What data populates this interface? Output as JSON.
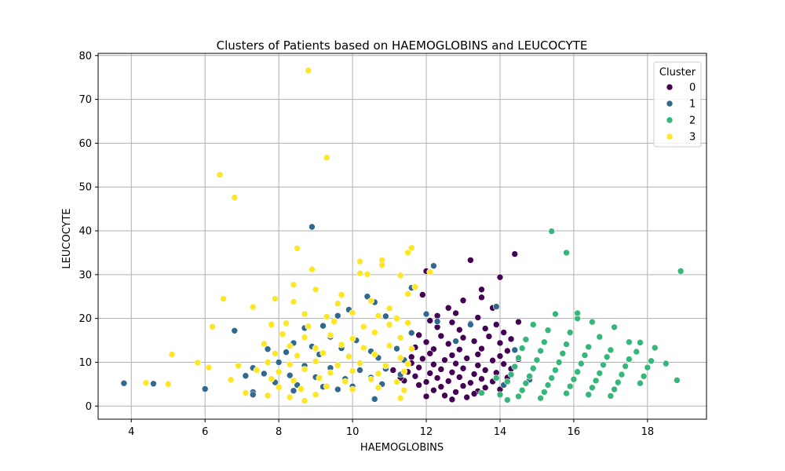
{
  "chart_data": {
    "type": "scatter",
    "title": "Clusters of Patients based on HAEMOGLOBINS and LEUCOCYTE",
    "xlabel": "HAEMOGLOBINS",
    "ylabel": "LEUCOCYTE",
    "xlim": [
      3.1,
      19.6
    ],
    "ylim": [
      -3.0,
      80.5
    ],
    "xticks": [
      4,
      6,
      8,
      10,
      12,
      14,
      16,
      18
    ],
    "yticks": [
      0,
      10,
      20,
      30,
      40,
      50,
      60,
      70,
      80
    ],
    "grid": true,
    "legend": {
      "title": "Cluster",
      "placement": "top-right"
    },
    "series": [
      {
        "name": "0",
        "color": "#440154",
        "points": [
          [
            13.2,
            33.3
          ],
          [
            14.4,
            34.7
          ],
          [
            14.0,
            29.4
          ],
          [
            12.0,
            30.8
          ],
          [
            11.9,
            25.4
          ],
          [
            13.0,
            24.1
          ],
          [
            13.5,
            24.8
          ],
          [
            13.5,
            26.6
          ],
          [
            12.6,
            22.4
          ],
          [
            13.8,
            22.4
          ],
          [
            12.3,
            20.6
          ],
          [
            12.8,
            21.2
          ],
          [
            13.4,
            20.2
          ],
          [
            12.1,
            19.5
          ],
          [
            12.7,
            19.1
          ],
          [
            13.2,
            18.8
          ],
          [
            13.9,
            18.6
          ],
          [
            14.5,
            19.2
          ],
          [
            12.3,
            18.0
          ],
          [
            12.9,
            17.4
          ],
          [
            13.6,
            17.7
          ],
          [
            14.1,
            16.8
          ],
          [
            11.8,
            16.2
          ],
          [
            12.4,
            16.0
          ],
          [
            13.0,
            15.6
          ],
          [
            13.7,
            15.9
          ],
          [
            14.3,
            15.3
          ],
          [
            12.0,
            14.6
          ],
          [
            12.6,
            14.2
          ],
          [
            13.3,
            14.8
          ],
          [
            14.0,
            14.4
          ],
          [
            11.7,
            13.4
          ],
          [
            12.2,
            13.0
          ],
          [
            12.9,
            12.9
          ],
          [
            13.5,
            13.1
          ],
          [
            14.2,
            12.6
          ],
          [
            12.1,
            12.0
          ],
          [
            12.7,
            11.6
          ],
          [
            13.4,
            11.8
          ],
          [
            14.0,
            11.4
          ],
          [
            11.9,
            10.8
          ],
          [
            12.5,
            10.5
          ],
          [
            13.1,
            10.9
          ],
          [
            13.8,
            10.4
          ],
          [
            14.5,
            10.7
          ],
          [
            11.6,
            9.8
          ],
          [
            12.2,
            9.5
          ],
          [
            12.8,
            9.7
          ],
          [
            13.4,
            9.3
          ],
          [
            14.1,
            9.6
          ],
          [
            11.8,
            8.8
          ],
          [
            12.4,
            8.4
          ],
          [
            13.0,
            8.6
          ],
          [
            13.6,
            8.2
          ],
          [
            14.3,
            8.5
          ],
          [
            11.5,
            7.8
          ],
          [
            12.1,
            7.5
          ],
          [
            12.7,
            7.7
          ],
          [
            13.3,
            7.3
          ],
          [
            13.9,
            7.6
          ],
          [
            11.7,
            6.8
          ],
          [
            12.3,
            6.4
          ],
          [
            12.9,
            6.6
          ],
          [
            13.5,
            6.2
          ],
          [
            14.2,
            6.5
          ],
          [
            11.4,
            5.8
          ],
          [
            12.0,
            5.5
          ],
          [
            12.6,
            5.7
          ],
          [
            13.2,
            5.3
          ],
          [
            13.8,
            5.6
          ],
          [
            11.8,
            4.8
          ],
          [
            12.4,
            4.4
          ],
          [
            13.0,
            4.6
          ],
          [
            13.6,
            4.2
          ],
          [
            12.2,
            3.6
          ],
          [
            12.8,
            3.2
          ],
          [
            13.4,
            3.4
          ],
          [
            14.0,
            3.8
          ],
          [
            12.5,
            2.4
          ],
          [
            13.1,
            2.0
          ],
          [
            12.0,
            2.2
          ],
          [
            12.7,
            1.5
          ],
          [
            13.3,
            2.8
          ],
          [
            11.6,
            11.2
          ],
          [
            11.3,
            6.4
          ],
          [
            11.1,
            8.2
          ]
        ]
      },
      {
        "name": "1",
        "color": "#31688e",
        "points": [
          [
            8.9,
            40.9
          ],
          [
            12.2,
            32.0
          ],
          [
            11.6,
            27.0
          ],
          [
            10.4,
            25.0
          ],
          [
            12.0,
            21.0
          ],
          [
            13.9,
            22.7
          ],
          [
            9.6,
            20.6
          ],
          [
            10.9,
            20.5
          ],
          [
            10.6,
            23.7
          ],
          [
            9.9,
            22.0
          ],
          [
            9.2,
            18.3
          ],
          [
            8.7,
            17.8
          ],
          [
            6.8,
            17.2
          ],
          [
            12.3,
            19.3
          ],
          [
            9.4,
            15.8
          ],
          [
            10.1,
            15.0
          ],
          [
            11.6,
            16.7
          ],
          [
            8.4,
            14.4
          ],
          [
            8.9,
            13.6
          ],
          [
            9.7,
            13.2
          ],
          [
            10.5,
            12.5
          ],
          [
            11.2,
            13.1
          ],
          [
            7.7,
            13.0
          ],
          [
            8.2,
            12.3
          ],
          [
            9.1,
            11.8
          ],
          [
            9.9,
            11.4
          ],
          [
            10.7,
            11.0
          ],
          [
            11.4,
            10.5
          ],
          [
            7.3,
            8.7
          ],
          [
            6.9,
            9.3
          ],
          [
            8.0,
            10.0
          ],
          [
            8.7,
            9.2
          ],
          [
            9.4,
            8.7
          ],
          [
            10.2,
            8.2
          ],
          [
            10.9,
            8.5
          ],
          [
            7.6,
            7.4
          ],
          [
            8.3,
            7.0
          ],
          [
            9.0,
            6.6
          ],
          [
            9.8,
            6.2
          ],
          [
            10.5,
            6.5
          ],
          [
            11.3,
            7.2
          ],
          [
            7.1,
            6.9
          ],
          [
            7.9,
            5.4
          ],
          [
            8.5,
            4.8
          ],
          [
            9.2,
            4.4
          ],
          [
            10.0,
            4.5
          ],
          [
            10.8,
            5.0
          ],
          [
            7.3,
            3.2
          ],
          [
            8.4,
            3.5
          ],
          [
            9.6,
            3.8
          ],
          [
            10.6,
            1.6
          ],
          [
            3.8,
            5.2
          ],
          [
            4.6,
            5.1
          ],
          [
            6.0,
            3.9
          ],
          [
            7.3,
            2.6
          ],
          [
            13.2,
            18.6
          ],
          [
            14.4,
            12.8
          ],
          [
            14.1,
            4.8
          ],
          [
            14.8,
            6.0
          ],
          [
            12.8,
            14.8
          ]
        ]
      },
      {
        "name": "2",
        "color": "#35b779",
        "points": [
          [
            15.4,
            39.9
          ],
          [
            15.8,
            35.0
          ],
          [
            18.9,
            30.8
          ],
          [
            14.9,
            18.6
          ],
          [
            15.5,
            21.0
          ],
          [
            16.1,
            20.0
          ],
          [
            16.5,
            19.2
          ],
          [
            17.1,
            18.0
          ],
          [
            15.3,
            17.3
          ],
          [
            15.9,
            16.8
          ],
          [
            16.7,
            15.8
          ],
          [
            17.5,
            14.6
          ],
          [
            18.2,
            13.3
          ],
          [
            14.7,
            15.2
          ],
          [
            15.2,
            14.6
          ],
          [
            15.8,
            14.1
          ],
          [
            16.4,
            13.5
          ],
          [
            17.0,
            12.8
          ],
          [
            17.7,
            12.4
          ],
          [
            14.6,
            13.2
          ],
          [
            15.1,
            12.6
          ],
          [
            15.7,
            12.0
          ],
          [
            16.3,
            11.6
          ],
          [
            16.9,
            11.2
          ],
          [
            17.5,
            10.7
          ],
          [
            18.1,
            10.3
          ],
          [
            14.5,
            11.0
          ],
          [
            15.0,
            10.5
          ],
          [
            15.6,
            10.0
          ],
          [
            16.2,
            9.7
          ],
          [
            16.8,
            9.4
          ],
          [
            17.4,
            9.1
          ],
          [
            18.0,
            8.8
          ],
          [
            18.5,
            9.7
          ],
          [
            14.4,
            9.0
          ],
          [
            14.9,
            8.6
          ],
          [
            15.5,
            8.2
          ],
          [
            16.1,
            7.8
          ],
          [
            16.7,
            7.5
          ],
          [
            17.3,
            7.2
          ],
          [
            17.9,
            6.8
          ],
          [
            14.3,
            7.2
          ],
          [
            14.8,
            6.8
          ],
          [
            15.4,
            6.4
          ],
          [
            16.0,
            6.1
          ],
          [
            16.6,
            5.8
          ],
          [
            17.2,
            5.4
          ],
          [
            17.8,
            5.2
          ],
          [
            14.2,
            5.6
          ],
          [
            14.7,
            5.2
          ],
          [
            15.3,
            4.8
          ],
          [
            15.9,
            4.5
          ],
          [
            16.5,
            4.2
          ],
          [
            17.1,
            3.8
          ],
          [
            14.6,
            3.6
          ],
          [
            15.2,
            3.2
          ],
          [
            15.8,
            2.9
          ],
          [
            16.4,
            2.6
          ],
          [
            17.0,
            2.3
          ],
          [
            14.5,
            2.2
          ],
          [
            15.1,
            1.8
          ],
          [
            14.0,
            2.6
          ],
          [
            13.5,
            3.0
          ],
          [
            13.9,
            6.4
          ],
          [
            14.2,
            1.4
          ],
          [
            18.8,
            5.9
          ],
          [
            17.8,
            14.5
          ],
          [
            16.1,
            21.2
          ]
        ]
      },
      {
        "name": "3",
        "color": "#fde725",
        "points": [
          [
            8.8,
            76.6
          ],
          [
            9.3,
            56.7
          ],
          [
            6.4,
            52.8
          ],
          [
            6.8,
            47.6
          ],
          [
            8.5,
            36.0
          ],
          [
            11.5,
            35.0
          ],
          [
            11.6,
            36.1
          ],
          [
            10.8,
            33.3
          ],
          [
            10.2,
            33.0
          ],
          [
            10.8,
            32.2
          ],
          [
            10.4,
            30.1
          ],
          [
            10.2,
            30.3
          ],
          [
            8.9,
            31.2
          ],
          [
            11.3,
            29.8
          ],
          [
            6.5,
            24.5
          ],
          [
            7.9,
            24.5
          ],
          [
            8.4,
            23.8
          ],
          [
            7.3,
            22.6
          ],
          [
            9.6,
            23.4
          ],
          [
            10.5,
            24.0
          ],
          [
            11.0,
            22.3
          ],
          [
            8.4,
            27.7
          ],
          [
            9.0,
            26.6
          ],
          [
            9.7,
            25.4
          ],
          [
            11.5,
            25.6
          ],
          [
            8.7,
            21.0
          ],
          [
            9.3,
            20.4
          ],
          [
            10.0,
            21.3
          ],
          [
            10.7,
            20.6
          ],
          [
            11.2,
            20.0
          ],
          [
            6.2,
            18.1
          ],
          [
            7.8,
            18.6
          ],
          [
            8.2,
            18.9
          ],
          [
            8.8,
            18.2
          ],
          [
            9.5,
            19.3
          ],
          [
            10.3,
            18.1
          ],
          [
            11.0,
            18.6
          ],
          [
            11.5,
            19.0
          ],
          [
            8.1,
            16.4
          ],
          [
            8.7,
            15.7
          ],
          [
            9.4,
            16.2
          ],
          [
            10.0,
            15.4
          ],
          [
            10.6,
            16.8
          ],
          [
            11.3,
            15.6
          ],
          [
            7.6,
            14.2
          ],
          [
            8.3,
            13.7
          ],
          [
            9.0,
            13.2
          ],
          [
            9.7,
            14.0
          ],
          [
            10.3,
            13.3
          ],
          [
            11.0,
            13.8
          ],
          [
            11.6,
            13.1
          ],
          [
            7.9,
            12.0
          ],
          [
            8.5,
            11.5
          ],
          [
            9.2,
            12.1
          ],
          [
            9.9,
            11.3
          ],
          [
            10.6,
            11.8
          ],
          [
            11.3,
            11.0
          ],
          [
            7.7,
            10.0
          ],
          [
            8.3,
            9.5
          ],
          [
            9.0,
            10.2
          ],
          [
            9.6,
            9.3
          ],
          [
            10.2,
            9.8
          ],
          [
            10.9,
            9.2
          ],
          [
            11.5,
            9.6
          ],
          [
            7.4,
            8.2
          ],
          [
            8.0,
            7.8
          ],
          [
            8.7,
            8.4
          ],
          [
            9.4,
            7.6
          ],
          [
            10.0,
            8.0
          ],
          [
            10.7,
            7.4
          ],
          [
            11.4,
            7.9
          ],
          [
            7.8,
            6.2
          ],
          [
            8.4,
            5.8
          ],
          [
            9.1,
            6.4
          ],
          [
            9.8,
            5.6
          ],
          [
            10.5,
            6.1
          ],
          [
            11.2,
            5.5
          ],
          [
            8.0,
            4.3
          ],
          [
            8.6,
            3.9
          ],
          [
            9.3,
            4.5
          ],
          [
            10.0,
            3.8
          ],
          [
            10.7,
            4.2
          ],
          [
            11.4,
            3.6
          ],
          [
            7.7,
            2.4
          ],
          [
            8.3,
            2.0
          ],
          [
            9.0,
            2.6
          ],
          [
            11.3,
            1.8
          ],
          [
            8.7,
            1.2
          ],
          [
            5.1,
            11.8
          ],
          [
            5.8,
            9.9
          ],
          [
            6.1,
            8.8
          ],
          [
            4.4,
            5.3
          ],
          [
            5.0,
            5.0
          ],
          [
            6.7,
            6.0
          ],
          [
            7.1,
            3.0
          ],
          [
            6.9,
            9.2
          ],
          [
            12.1,
            30.6
          ],
          [
            11.7,
            27.2
          ]
        ]
      }
    ]
  }
}
